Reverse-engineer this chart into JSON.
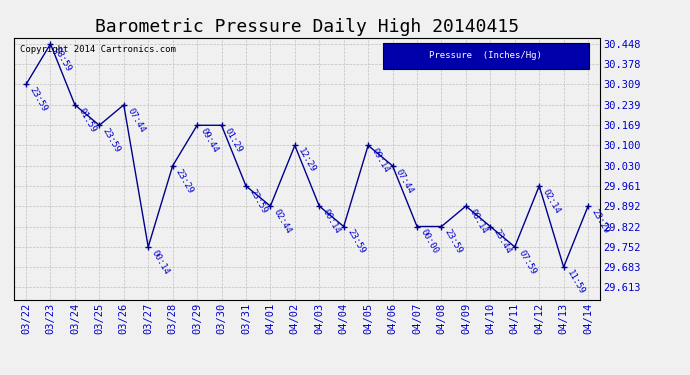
{
  "title": "Barometric Pressure Daily High 20140415",
  "legend_label": "Pressure  (Inches/Hg)",
  "copyright": "Copyright 2014 Cartronics.com",
  "dates": [
    "03/22",
    "03/23",
    "03/24",
    "03/25",
    "03/26",
    "03/27",
    "03/28",
    "03/29",
    "03/30",
    "03/31",
    "04/01",
    "04/02",
    "04/03",
    "04/04",
    "04/05",
    "04/06",
    "04/07",
    "04/08",
    "04/09",
    "04/10",
    "04/11",
    "04/12",
    "04/13",
    "04/14"
  ],
  "values": [
    30.309,
    30.448,
    30.239,
    30.169,
    30.239,
    29.752,
    30.03,
    30.169,
    30.169,
    29.961,
    29.892,
    30.1,
    29.892,
    29.822,
    30.1,
    30.03,
    29.822,
    29.822,
    29.892,
    29.822,
    29.752,
    29.961,
    29.683,
    29.892
  ],
  "times": [
    "23:59",
    "08:59",
    "01:59",
    "23:59",
    "07:44",
    "00:14",
    "23:29",
    "09:44",
    "01:29",
    "23:59",
    "02:44",
    "12:29",
    "00:14",
    "23:59",
    "09:14",
    "07:44",
    "00:00",
    "23:59",
    "08:14",
    "23:44",
    "07:59",
    "02:14",
    "11:59",
    "23:29"
  ],
  "line_color": "#00008B",
  "marker_color": "#00008B",
  "text_color": "#0000CC",
  "grid_color": "#BBBBBB",
  "bg_color": "#F0F0F0",
  "plot_bg": "#F0F0F0",
  "legend_bg": "#0000AA",
  "legend_text": "#FFFFFF",
  "yticks": [
    29.613,
    29.683,
    29.752,
    29.822,
    29.892,
    29.961,
    30.03,
    30.1,
    30.169,
    30.239,
    30.309,
    30.378,
    30.448
  ],
  "ymin": 29.57,
  "ymax": 30.47,
  "title_fontsize": 13,
  "label_fontsize": 6.5,
  "tick_fontsize": 7.5,
  "copyright_fontsize": 6.5
}
